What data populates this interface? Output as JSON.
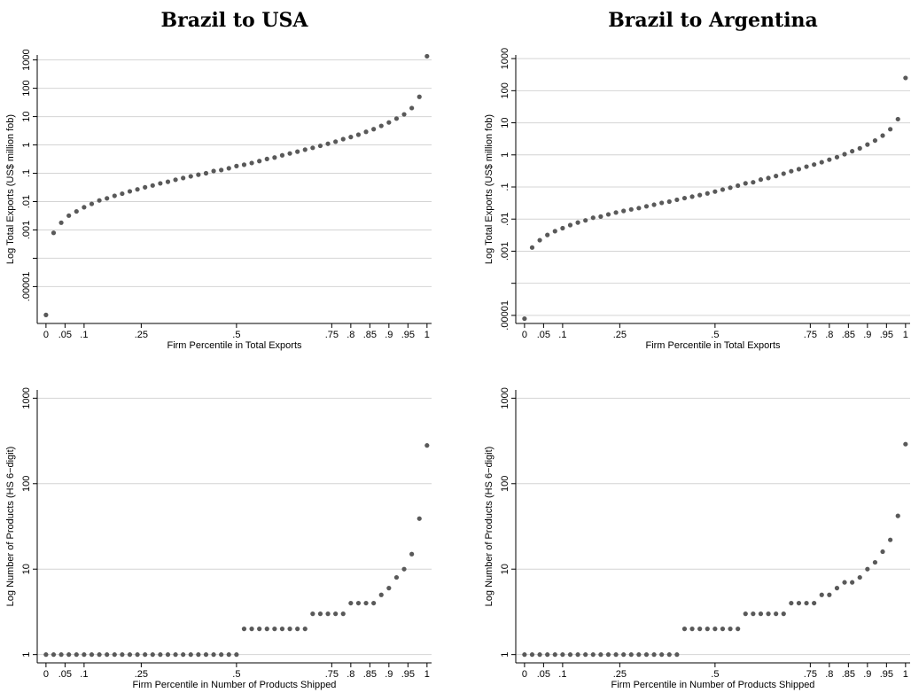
{
  "chart_data": [
    {
      "type": "scatter",
      "title": "Brazil to USA",
      "xlabel": "Firm Percentile in Total Exports",
      "ylabel": "Log Total Exports (US$ million fob)",
      "logy": true,
      "grid": true,
      "color": "#595959",
      "xlim": [
        -0.023,
        1.012
      ],
      "xticks": [
        0,
        {
          "value": 0.05,
          "label": ".05"
        },
        {
          "value": 0.1,
          "label": ".1"
        },
        {
          "value": 0.25,
          "label": ".25"
        },
        {
          "value": 0.5,
          "label": ".5"
        },
        {
          "value": 0.75,
          "label": ".75"
        },
        {
          "value": 0.8,
          "label": ".8"
        },
        {
          "value": 0.85,
          "label": ".85"
        },
        {
          "value": 0.9,
          "label": ".9"
        },
        {
          "value": 0.95,
          "label": ".95"
        },
        1
      ],
      "ylim": [
        5e-07,
        1500
      ],
      "yticks": [
        {
          "value": 1e-05,
          "label": ".00001"
        },
        {
          "value": 0.001,
          "label": ".001"
        },
        {
          "value": 0.01,
          "label": ".01"
        },
        {
          "value": 0.1,
          "label": ".1"
        },
        1,
        10,
        100,
        1000
      ],
      "minor_yticks": [
        0.0001
      ],
      "x": [
        0,
        0.02,
        0.04,
        0.06,
        0.08,
        0.1,
        0.12,
        0.14,
        0.16,
        0.18,
        0.2,
        0.22,
        0.24,
        0.26,
        0.28,
        0.3,
        0.32,
        0.34,
        0.36,
        0.38,
        0.4,
        0.42,
        0.44,
        0.46,
        0.48,
        0.5,
        0.52,
        0.54,
        0.56,
        0.58,
        0.6,
        0.62,
        0.64,
        0.66,
        0.68,
        0.7,
        0.72,
        0.74,
        0.76,
        0.78,
        0.8,
        0.82,
        0.84,
        0.86,
        0.88,
        0.9,
        0.92,
        0.94,
        0.96,
        0.98,
        1
      ],
      "values": [
        1e-06,
        0.00079,
        0.0018,
        0.0032,
        0.0045,
        0.0063,
        0.0083,
        0.011,
        0.013,
        0.016,
        0.019,
        0.023,
        0.027,
        0.032,
        0.037,
        0.044,
        0.05,
        0.059,
        0.068,
        0.078,
        0.089,
        0.1,
        0.12,
        0.13,
        0.15,
        0.18,
        0.2,
        0.23,
        0.27,
        0.32,
        0.36,
        0.43,
        0.5,
        0.58,
        0.68,
        0.79,
        0.93,
        1.1,
        1.3,
        1.6,
        1.9,
        2.3,
        2.9,
        3.6,
        4.7,
        6.2,
        8.5,
        12,
        20,
        50,
        1350
      ]
    },
    {
      "type": "scatter",
      "title": "Brazil to Argentina",
      "xlabel": "Firm Percentile in Total Exports",
      "ylabel": "Log Total Exports (US$ million fob)",
      "logy": true,
      "grid": true,
      "color": "#595959",
      "xlim": [
        -0.023,
        1.012
      ],
      "xticks": [
        0,
        {
          "value": 0.05,
          "label": ".05"
        },
        {
          "value": 0.1,
          "label": ".1"
        },
        {
          "value": 0.25,
          "label": ".25"
        },
        {
          "value": 0.5,
          "label": ".5"
        },
        {
          "value": 0.75,
          "label": ".75"
        },
        {
          "value": 0.8,
          "label": ".8"
        },
        {
          "value": 0.85,
          "label": ".85"
        },
        {
          "value": 0.9,
          "label": ".9"
        },
        {
          "value": 0.95,
          "label": ".95"
        },
        1
      ],
      "ylim": [
        5.6e-06,
        1300
      ],
      "yticks": [
        {
          "value": 1e-05,
          "label": ".00001"
        },
        {
          "value": 0.001,
          "label": ".001"
        },
        {
          "value": 0.01,
          "label": ".01"
        },
        {
          "value": 0.1,
          "label": ".1"
        },
        1,
        10,
        100,
        1000
      ],
      "minor_yticks": [
        0.0001
      ],
      "x": [
        0,
        0.02,
        0.04,
        0.06,
        0.08,
        0.1,
        0.12,
        0.14,
        0.16,
        0.18,
        0.2,
        0.22,
        0.24,
        0.26,
        0.28,
        0.3,
        0.32,
        0.34,
        0.36,
        0.38,
        0.4,
        0.42,
        0.44,
        0.46,
        0.48,
        0.5,
        0.52,
        0.54,
        0.56,
        0.58,
        0.6,
        0.62,
        0.64,
        0.66,
        0.68,
        0.7,
        0.72,
        0.74,
        0.76,
        0.78,
        0.8,
        0.82,
        0.84,
        0.86,
        0.88,
        0.9,
        0.92,
        0.94,
        0.96,
        0.98,
        1
      ],
      "values": [
        7.9e-06,
        0.0013,
        0.0022,
        0.0032,
        0.0042,
        0.0052,
        0.0065,
        0.0078,
        0.0091,
        0.011,
        0.012,
        0.014,
        0.016,
        0.018,
        0.02,
        0.022,
        0.025,
        0.028,
        0.032,
        0.035,
        0.04,
        0.045,
        0.05,
        0.056,
        0.063,
        0.072,
        0.083,
        0.095,
        0.11,
        0.13,
        0.14,
        0.17,
        0.19,
        0.22,
        0.26,
        0.31,
        0.36,
        0.43,
        0.5,
        0.59,
        0.71,
        0.85,
        1.05,
        1.3,
        1.6,
        2.1,
        2.8,
        4,
        6.3,
        13,
        250
      ]
    },
    {
      "type": "scatter",
      "xlabel": "Firm Percentile in Number of Products Shipped",
      "ylabel": "Log Number of Products (HS 6−digit)",
      "logy": true,
      "grid": true,
      "color": "#595959",
      "xlim": [
        -0.023,
        1.012
      ],
      "xticks": [
        0,
        {
          "value": 0.05,
          "label": ".05"
        },
        {
          "value": 0.1,
          "label": ".1"
        },
        {
          "value": 0.25,
          "label": ".25"
        },
        {
          "value": 0.5,
          "label": ".5"
        },
        {
          "value": 0.75,
          "label": ".75"
        },
        {
          "value": 0.8,
          "label": ".8"
        },
        {
          "value": 0.85,
          "label": ".85"
        },
        {
          "value": 0.9,
          "label": ".9"
        },
        {
          "value": 0.95,
          "label": ".95"
        },
        1
      ],
      "ylim": [
        0.8,
        1250
      ],
      "yticks": [
        1,
        10,
        100,
        1000
      ],
      "x": [
        0,
        0.02,
        0.04,
        0.06,
        0.08,
        0.1,
        0.12,
        0.14,
        0.16,
        0.18,
        0.2,
        0.22,
        0.24,
        0.26,
        0.28,
        0.3,
        0.32,
        0.34,
        0.36,
        0.38,
        0.4,
        0.42,
        0.44,
        0.46,
        0.48,
        0.5,
        0.52,
        0.54,
        0.56,
        0.58,
        0.6,
        0.62,
        0.64,
        0.66,
        0.68,
        0.7,
        0.72,
        0.74,
        0.76,
        0.78,
        0.8,
        0.82,
        0.84,
        0.86,
        0.88,
        0.9,
        0.92,
        0.94,
        0.96,
        0.98,
        1
      ],
      "values": [
        1,
        1,
        1,
        1,
        1,
        1,
        1,
        1,
        1,
        1,
        1,
        1,
        1,
        1,
        1,
        1,
        1,
        1,
        1,
        1,
        1,
        1,
        1,
        1,
        1,
        1,
        2,
        2,
        2,
        2,
        2,
        2,
        2,
        2,
        2,
        3,
        3,
        3,
        3,
        3,
        4,
        4,
        4,
        4,
        5,
        6,
        8,
        10,
        15,
        39,
        280
      ]
    },
    {
      "type": "scatter",
      "xlabel": "Firm Percentile in Number of Products Shipped",
      "ylabel": "Log Number of Products (HS 6−digit)",
      "logy": true,
      "grid": true,
      "color": "#595959",
      "xlim": [
        -0.023,
        1.012
      ],
      "xticks": [
        0,
        {
          "value": 0.05,
          "label": ".05"
        },
        {
          "value": 0.1,
          "label": ".1"
        },
        {
          "value": 0.25,
          "label": ".25"
        },
        {
          "value": 0.5,
          "label": ".5"
        },
        {
          "value": 0.75,
          "label": ".75"
        },
        {
          "value": 0.8,
          "label": ".8"
        },
        {
          "value": 0.85,
          "label": ".85"
        },
        {
          "value": 0.9,
          "label": ".9"
        },
        {
          "value": 0.95,
          "label": ".95"
        },
        1
      ],
      "ylim": [
        0.8,
        1250
      ],
      "yticks": [
        1,
        10,
        100,
        1000
      ],
      "x": [
        0,
        0.02,
        0.04,
        0.06,
        0.08,
        0.1,
        0.12,
        0.14,
        0.16,
        0.18,
        0.2,
        0.22,
        0.24,
        0.26,
        0.28,
        0.3,
        0.32,
        0.34,
        0.36,
        0.38,
        0.4,
        0.42,
        0.44,
        0.46,
        0.48,
        0.5,
        0.52,
        0.54,
        0.56,
        0.58,
        0.6,
        0.62,
        0.64,
        0.66,
        0.68,
        0.7,
        0.72,
        0.74,
        0.76,
        0.78,
        0.8,
        0.82,
        0.84,
        0.86,
        0.88,
        0.9,
        0.92,
        0.94,
        0.96,
        0.98,
        1
      ],
      "values": [
        1,
        1,
        1,
        1,
        1,
        1,
        1,
        1,
        1,
        1,
        1,
        1,
        1,
        1,
        1,
        1,
        1,
        1,
        1,
        1,
        1,
        2,
        2,
        2,
        2,
        2,
        2,
        2,
        2,
        3,
        3,
        3,
        3,
        3,
        3,
        4,
        4,
        4,
        4,
        5,
        5,
        6,
        7,
        7,
        8,
        10,
        12,
        16,
        22,
        42,
        290
      ]
    }
  ]
}
